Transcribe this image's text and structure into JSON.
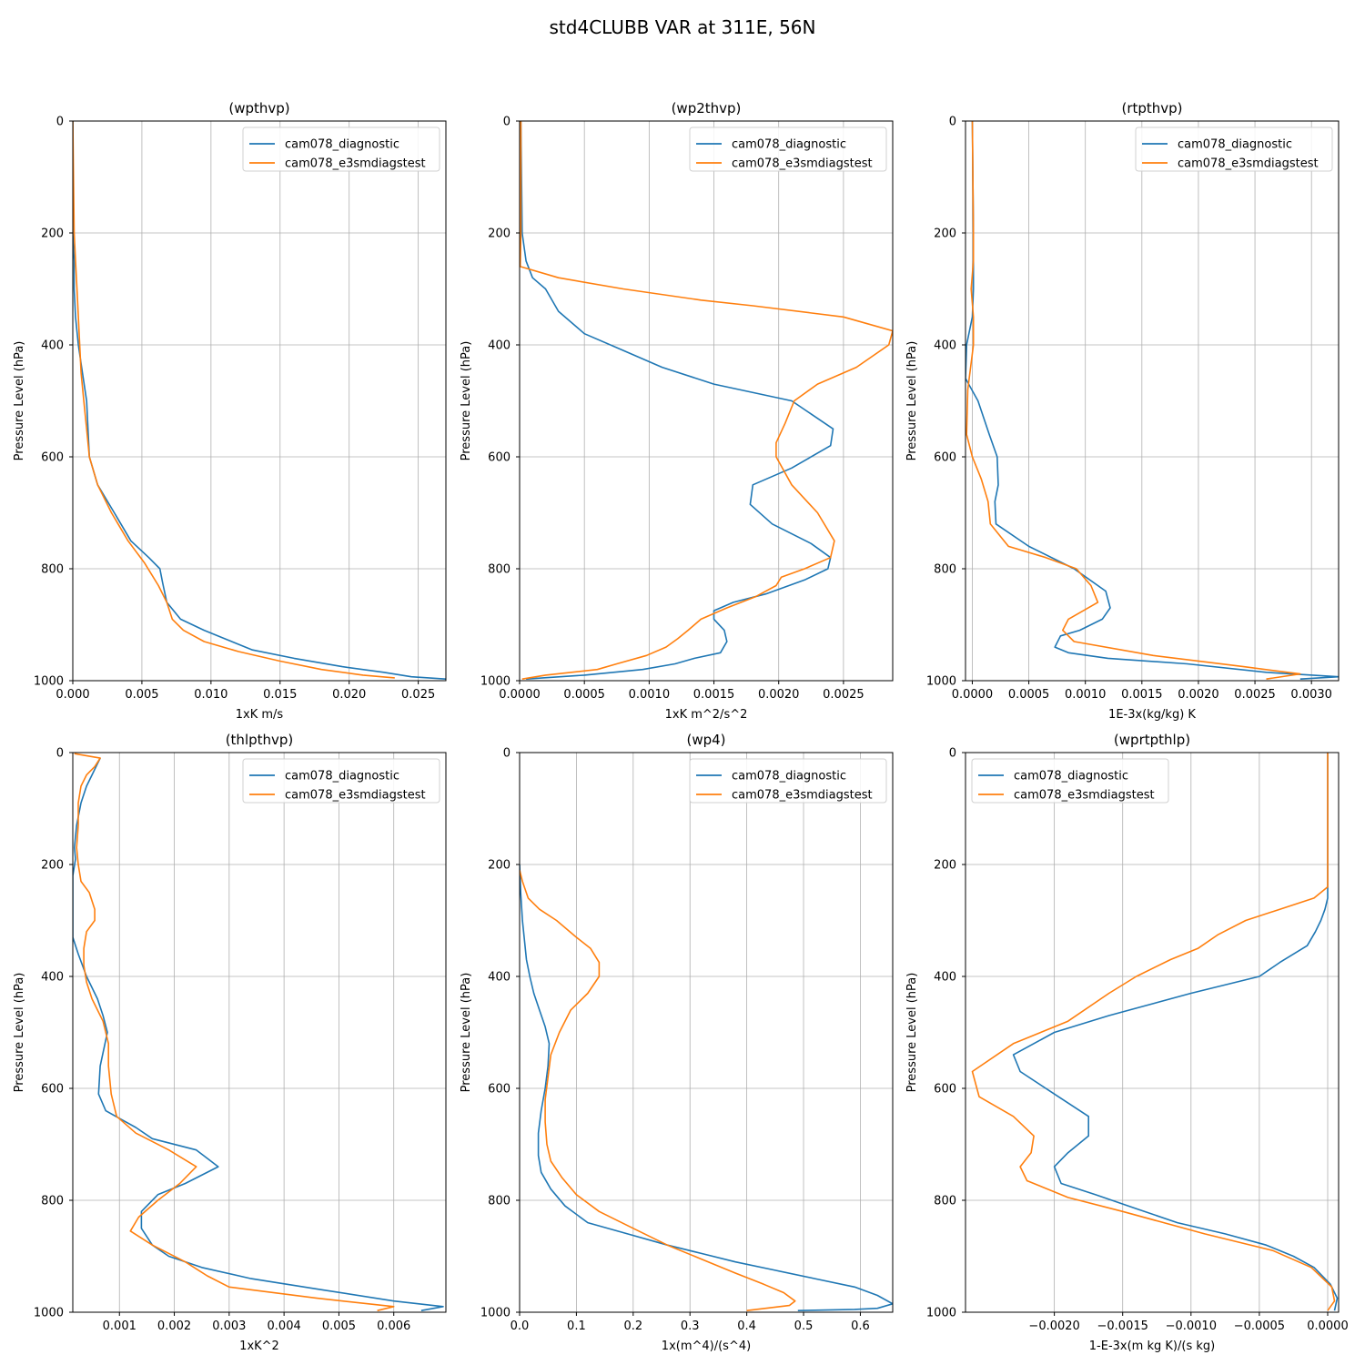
{
  "figure": {
    "title": "std4CLUBB VAR at 311E, 56N"
  },
  "colors": {
    "diagnostic": "#1f77b4",
    "e3smdiagstest": "#ff7f0e"
  },
  "chart_data": [
    {
      "type": "line",
      "title": "(wpthvp)",
      "xlabel": "1xK m/s",
      "ylabel": "Pressure Level (hPa)",
      "xlim": [
        0,
        0.027
      ],
      "ylim": [
        1000,
        0
      ],
      "xticks": [
        0,
        0.005,
        0.01,
        0.015,
        0.02,
        0.025
      ],
      "xticklabels": [
        "0.000",
        "0.005",
        "0.010",
        "0.015",
        "0.020",
        "0.025"
      ],
      "yticks": [
        0,
        200,
        400,
        600,
        800,
        1000
      ],
      "yticklabels": [
        "0",
        "200",
        "400",
        "600",
        "800",
        "1000"
      ],
      "grid": true,
      "legend": "upper right",
      "series": [
        {
          "name": "cam078_diagnostic",
          "color": "#1f77b4",
          "x": [
            0,
            0,
            0.0001,
            0.0001,
            0.0002,
            0.0004,
            0.0007,
            0.001,
            0.0011,
            0.0012,
            0.0018,
            0.003,
            0.0042,
            0.0055,
            0.0063,
            0.0065,
            0.0068,
            0.0078,
            0.0095,
            0.011,
            0.013,
            0.016,
            0.0195,
            0.0225,
            0.0245,
            0.027
          ],
          "y": [
            0,
            200,
            250,
            300,
            350,
            400,
            450,
            500,
            550,
            600,
            650,
            700,
            750,
            780,
            800,
            825,
            860,
            890,
            910,
            925,
            945,
            960,
            975,
            985,
            993,
            997
          ]
        },
        {
          "name": "cam078_e3smdiagstest",
          "color": "#ff7f0e",
          "x": [
            0,
            0.0001,
            0.0002,
            0.0003,
            0.0004,
            0.0005,
            0.0006,
            0.0008,
            0.001,
            0.0012,
            0.0018,
            0.0028,
            0.004,
            0.0052,
            0.0062,
            0.0068,
            0.0072,
            0.008,
            0.0095,
            0.012,
            0.015,
            0.018,
            0.021,
            0.0233
          ],
          "y": [
            0,
            200,
            250,
            300,
            350,
            400,
            450,
            500,
            550,
            600,
            650,
            700,
            750,
            790,
            830,
            860,
            890,
            910,
            930,
            948,
            965,
            980,
            990,
            995
          ]
        }
      ]
    },
    {
      "type": "line",
      "title": "(wp2thvp)",
      "xlabel": "1xK m^2/s^2",
      "ylabel": "Pressure Level (hPa)",
      "xlim": [
        0,
        0.00288
      ],
      "ylim": [
        1000,
        0
      ],
      "xticks": [
        0,
        0.0005,
        0.001,
        0.0015,
        0.002,
        0.0025
      ],
      "xticklabels": [
        "0.0000",
        "0.0005",
        "0.0010",
        "0.0015",
        "0.0020",
        "0.0025"
      ],
      "yticks": [
        0,
        200,
        400,
        600,
        800,
        1000
      ],
      "yticklabels": [
        "0",
        "200",
        "400",
        "600",
        "800",
        "1000"
      ],
      "grid": true,
      "legend": "upper right",
      "series": [
        {
          "name": "cam078_diagnostic",
          "color": "#1f77b4",
          "x": [
            1e-05,
            2e-05,
            5e-05,
            0.0001,
            0.0002,
            0.0003,
            0.0005,
            0.0008,
            0.0011,
            0.0015,
            0.0021,
            0.00242,
            0.0024,
            0.0021,
            0.0018,
            0.00178,
            0.00195,
            0.00225,
            0.0024,
            0.00238,
            0.0022,
            0.0019,
            0.00165,
            0.0015,
            0.0015,
            0.00158,
            0.0016,
            0.00155,
            0.00135,
            0.0012,
            0.00095,
            0.0005,
            5e-05
          ],
          "y": [
            0,
            200,
            250,
            280,
            300,
            340,
            380,
            410,
            440,
            470,
            500,
            550,
            580,
            620,
            650,
            685,
            720,
            755,
            780,
            800,
            820,
            845,
            860,
            875,
            890,
            910,
            930,
            950,
            960,
            970,
            980,
            990,
            997
          ]
        },
        {
          "name": "cam078_e3smdiagstest",
          "color": "#ff7f0e",
          "x": [
            1e-05,
            1e-05,
            5e-06,
            0.0003,
            0.0008,
            0.0014,
            0.0018,
            0.0025,
            0.00288,
            0.00285,
            0.0026,
            0.0023,
            0.00212,
            0.00205,
            0.00198,
            0.00198,
            0.0021,
            0.0023,
            0.00243,
            0.0024,
            0.0022,
            0.00202,
            0.00198,
            0.00182,
            0.0016,
            0.0014,
            0.0013,
            0.00122,
            0.00113,
            0.00098,
            0.00075,
            0.0006,
            0.0002,
            2e-05
          ],
          "y": [
            0,
            200,
            260,
            280,
            300,
            320,
            330,
            350,
            375,
            400,
            440,
            470,
            500,
            540,
            575,
            600,
            650,
            700,
            750,
            780,
            800,
            815,
            830,
            850,
            870,
            890,
            910,
            925,
            940,
            955,
            970,
            980,
            990,
            997
          ]
        }
      ]
    },
    {
      "type": "line",
      "title": "(rtpthvp)",
      "xlabel": "1E-3x(kg/kg) K",
      "ylabel": "Pressure Level (hPa)",
      "xlim": [
        -6e-05,
        0.00324
      ],
      "ylim": [
        1000,
        0
      ],
      "xticks": [
        0,
        0.0005,
        0.001,
        0.0015,
        0.002,
        0.0025,
        0.003
      ],
      "xticklabels": [
        "0.0000",
        "0.0005",
        "0.0010",
        "0.0015",
        "0.0020",
        "0.0025",
        "0.0030"
      ],
      "yticks": [
        0,
        200,
        400,
        600,
        800,
        1000
      ],
      "yticklabels": [
        "0",
        "200",
        "400",
        "600",
        "800",
        "1000"
      ],
      "grid": true,
      "legend": "upper right",
      "series": [
        {
          "name": "cam078_diagnostic",
          "color": "#1f77b4",
          "x": [
            0,
            1e-05,
            1e-05,
            1e-05,
            0.0,
            -5e-05,
            -6e-05,
            5e-05,
            0.00015,
            0.00022,
            0.00023,
            0.0002,
            0.00021,
            0.0005,
            0.0009,
            0.00118,
            0.00122,
            0.00115,
            0.00095,
            0.00078,
            0.00073,
            0.00085,
            0.0012,
            0.0019,
            0.0026,
            0.00324,
            0.0029
          ],
          "y": [
            0,
            200,
            250,
            300,
            350,
            400,
            460,
            500,
            560,
            600,
            650,
            680,
            720,
            760,
            800,
            840,
            870,
            890,
            910,
            920,
            940,
            950,
            960,
            970,
            985,
            993,
            997
          ]
        },
        {
          "name": "cam078_e3smdiagstest",
          "color": "#ff7f0e",
          "x": [
            0,
            1e-05,
            1e-05,
            -1e-05,
            1e-05,
            1e-05,
            -4e-05,
            -5e-05,
            0.0,
            8e-05,
            0.00014,
            0.00016,
            0.00032,
            0.00065,
            0.00092,
            0.00105,
            0.00111,
            0.00085,
            0.0008,
            0.0009,
            0.0016,
            0.0024,
            0.0029,
            0.0026
          ],
          "y": [
            0,
            200,
            250,
            300,
            350,
            400,
            480,
            560,
            600,
            640,
            680,
            720,
            760,
            780,
            800,
            830,
            860,
            890,
            910,
            930,
            955,
            975,
            988,
            997
          ]
        }
      ]
    },
    {
      "type": "line",
      "title": "(thlpthvp)",
      "xlabel": "1xK^2",
      "ylabel": "Pressure Level (hPa)",
      "xlim": [
        0.00015,
        0.00695
      ],
      "ylim": [
        1000,
        0
      ],
      "xticks": [
        0.001,
        0.002,
        0.003,
        0.004,
        0.005,
        0.006
      ],
      "xticklabels": [
        "0.001",
        "0.002",
        "0.003",
        "0.004",
        "0.005",
        "0.006"
      ],
      "yticks": [
        0,
        200,
        400,
        600,
        800,
        1000
      ],
      "yticklabels": [
        "0",
        "200",
        "400",
        "600",
        "800",
        "1000"
      ],
      "grid": true,
      "legend": "upper right",
      "series": [
        {
          "name": "cam078_diagnostic",
          "color": "#1f77b4",
          "x": [
            0.00065,
            0.0006,
            0.0005,
            0.0004,
            0.0003,
            0.00022,
            0.00018,
            0.0002,
            0.00015,
            0.00015,
            0.00015,
            0.00025,
            0.0004,
            0.0006,
            0.0007,
            0.00078,
            0.00065,
            0.00062,
            0.00075,
            0.0013,
            0.0016,
            0.0024,
            0.0028,
            0.0022,
            0.0017,
            0.0014,
            0.0014,
            0.0016,
            0.0019,
            0.0025,
            0.0034,
            0.0047,
            0.006,
            0.0069,
            0.0065
          ],
          "y": [
            10,
            20,
            40,
            60,
            90,
            130,
            170,
            190,
            220,
            300,
            330,
            360,
            400,
            440,
            470,
            500,
            560,
            610,
            640,
            670,
            690,
            710,
            740,
            770,
            790,
            820,
            850,
            880,
            900,
            920,
            940,
            960,
            980,
            990,
            997
          ]
        },
        {
          "name": "cam078_e3smdiagstest",
          "color": "#ff7f0e",
          "x": [
            0.00018,
            0.00065,
            0.00055,
            0.0004,
            0.0003,
            0.00025,
            0.00025,
            0.00022,
            0.00025,
            0.0003,
            0.00045,
            0.00055,
            0.00055,
            0.0004,
            0.00035,
            0.00035,
            0.0004,
            0.0005,
            0.0007,
            0.0008,
            0.0008,
            0.00085,
            0.00095,
            0.0013,
            0.0019,
            0.0024,
            0.0021,
            0.0017,
            0.00135,
            0.0012,
            0.0016,
            0.0022,
            0.0026,
            0.003,
            0.0046,
            0.006,
            0.0057
          ],
          "y": [
            2,
            10,
            25,
            40,
            60,
            90,
            130,
            170,
            200,
            230,
            250,
            280,
            300,
            320,
            350,
            380,
            410,
            440,
            480,
            520,
            560,
            610,
            650,
            680,
            710,
            740,
            770,
            800,
            830,
            855,
            880,
            910,
            935,
            955,
            975,
            990,
            997
          ]
        }
      ]
    },
    {
      "type": "line",
      "title": "(wp4)",
      "xlabel": "1x(m^4)/(s^4)",
      "ylabel": "Pressure Level (hPa)",
      "xlim": [
        0,
        0.657
      ],
      "ylim": [
        1000,
        0
      ],
      "xticks": [
        0,
        0.1,
        0.2,
        0.3,
        0.4,
        0.5,
        0.6
      ],
      "xticklabels": [
        "0.0",
        "0.1",
        "0.2",
        "0.3",
        "0.4",
        "0.5",
        "0.6"
      ],
      "yticks": [
        0,
        200,
        400,
        600,
        800,
        1000
      ],
      "yticklabels": [
        "0",
        "200",
        "400",
        "600",
        "800",
        "1000"
      ],
      "grid": true,
      "legend": "upper right",
      "series": [
        {
          "name": "cam078_diagnostic",
          "color": "#1f77b4",
          "x": [
            0,
            0.002,
            0.005,
            0.008,
            0.012,
            0.018,
            0.025,
            0.035,
            0.045,
            0.052,
            0.05,
            0.045,
            0.038,
            0.033,
            0.033,
            0.038,
            0.055,
            0.08,
            0.12,
            0.19,
            0.26,
            0.32,
            0.38,
            0.45,
            0.52,
            0.59,
            0.63,
            0.657,
            0.63,
            0.59,
            0.49
          ],
          "y": [
            200,
            250,
            300,
            330,
            370,
            400,
            430,
            460,
            490,
            520,
            560,
            600,
            640,
            680,
            720,
            750,
            780,
            810,
            840,
            860,
            880,
            895,
            910,
            925,
            940,
            955,
            970,
            985,
            993,
            995,
            997
          ]
        },
        {
          "name": "cam078_e3smdiagstest",
          "color": "#ff7f0e",
          "x": [
            0,
            0.005,
            0.015,
            0.035,
            0.065,
            0.1,
            0.125,
            0.14,
            0.14,
            0.12,
            0.09,
            0.07,
            0.055,
            0.05,
            0.045,
            0.045,
            0.048,
            0.055,
            0.075,
            0.1,
            0.14,
            0.2,
            0.26,
            0.32,
            0.38,
            0.43,
            0.465,
            0.485,
            0.475,
            0.4
          ],
          "y": [
            210,
            230,
            260,
            280,
            300,
            330,
            350,
            375,
            400,
            430,
            460,
            500,
            540,
            580,
            620,
            660,
            700,
            730,
            760,
            790,
            820,
            850,
            880,
            905,
            930,
            950,
            965,
            980,
            988,
            997
          ]
        }
      ]
    },
    {
      "type": "line",
      "title": "(wprtpthlp)",
      "xlabel": "1-E-3x(m kg K)/(s kg)",
      "ylabel": "Pressure Level (hPa)",
      "xlim": [
        -0.00265,
        8e-05
      ],
      "ylim": [
        1000,
        0
      ],
      "xticks": [
        -0.002,
        -0.0015,
        -0.001,
        -0.0005,
        0
      ],
      "xticklabels": [
        "−0.0020",
        "−0.0015",
        "−0.0010",
        "−0.0005",
        "0.0000"
      ],
      "yticks": [
        0,
        200,
        400,
        600,
        800,
        1000
      ],
      "yticklabels": [
        "0",
        "200",
        "400",
        "600",
        "800",
        "1000"
      ],
      "grid": true,
      "legend": "upper left",
      "series": [
        {
          "name": "cam078_diagnostic",
          "color": "#1f77b4",
          "x": [
            0,
            0,
            0,
            0,
            -2e-05,
            -5e-05,
            -9e-05,
            -0.00015,
            -0.00035,
            -0.0005,
            -0.001,
            -0.0016,
            -0.002,
            -0.0023,
            -0.00225,
            -0.002,
            -0.00175,
            -0.00175,
            -0.0019,
            -0.002,
            -0.00195,
            -0.0017,
            -0.0014,
            -0.0011,
            -0.00075,
            -0.00045,
            -0.00025,
            -0.0001,
            2e-05,
            7e-05,
            5e-05
          ],
          "y": [
            0,
            200,
            230,
            260,
            280,
            300,
            320,
            345,
            375,
            400,
            430,
            470,
            500,
            540,
            570,
            610,
            650,
            685,
            715,
            740,
            770,
            790,
            815,
            840,
            860,
            880,
            900,
            920,
            950,
            975,
            997
          ]
        },
        {
          "name": "cam078_e3smdiagstest",
          "color": "#ff7f0e",
          "x": [
            0,
            0,
            0,
            -0.0001,
            -0.00035,
            -0.0006,
            -0.0008,
            -0.00095,
            -0.00115,
            -0.0014,
            -0.0016,
            -0.0019,
            -0.0023,
            -0.0026,
            -0.00255,
            -0.0023,
            -0.00215,
            -0.00217,
            -0.00225,
            -0.0022,
            -0.0019,
            -0.0015,
            -0.0009,
            -0.0004,
            -0.00012,
            3e-05,
            5e-05,
            0
          ],
          "y": [
            0,
            200,
            240,
            260,
            280,
            300,
            325,
            350,
            370,
            400,
            430,
            480,
            520,
            570,
            615,
            650,
            685,
            715,
            740,
            765,
            795,
            820,
            860,
            890,
            920,
            955,
            980,
            997
          ]
        }
      ]
    }
  ]
}
